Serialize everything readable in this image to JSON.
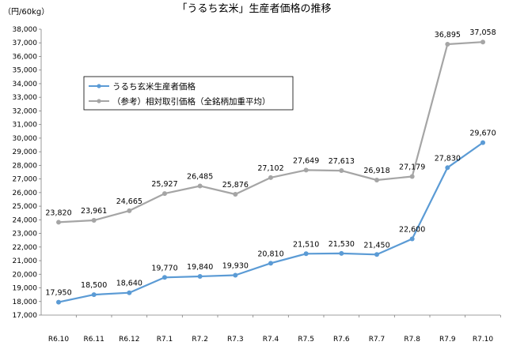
{
  "chart_data": {
    "type": "line",
    "title": "「うるち玄米」生産者価格の推移",
    "unit": "（円/60kg）",
    "categories": [
      "R6.10",
      "R6.11",
      "R6.12",
      "R7.1",
      "R7.2",
      "R7.3",
      "R7.4",
      "R7.5",
      "R7.6",
      "R7.7",
      "R7.8",
      "R7.9",
      "R7.10"
    ],
    "ylim": [
      17000,
      38000
    ],
    "ytick_step": 1000,
    "grid": false,
    "legend_position": "upper-left",
    "series": [
      {
        "name": "うるち玄米生産者価格",
        "color": "#5b9bd5",
        "values": [
          17950,
          18500,
          18640,
          19770,
          19840,
          19930,
          20810,
          21510,
          21530,
          21450,
          22600,
          27830,
          29670
        ],
        "labels": [
          "17,950",
          "18,500",
          "18,640",
          "19,770",
          "19,840",
          "19,930",
          "20,810",
          "21,510",
          "21,530",
          "21,450",
          "22,600",
          "27,830",
          "29,670"
        ]
      },
      {
        "name": "（参考）相対取引価格（全銘柄加重平均）",
        "color": "#a5a5a5",
        "values": [
          23820,
          23961,
          24665,
          25927,
          26485,
          25876,
          27102,
          27649,
          27613,
          26918,
          27179,
          36895,
          37058
        ],
        "labels": [
          "23,820",
          "23,961",
          "24,665",
          "25,927",
          "26,485",
          "25,876",
          "27,102",
          "27,649",
          "27,613",
          "26,918",
          "27,179",
          "36,895",
          "37,058"
        ]
      }
    ]
  }
}
